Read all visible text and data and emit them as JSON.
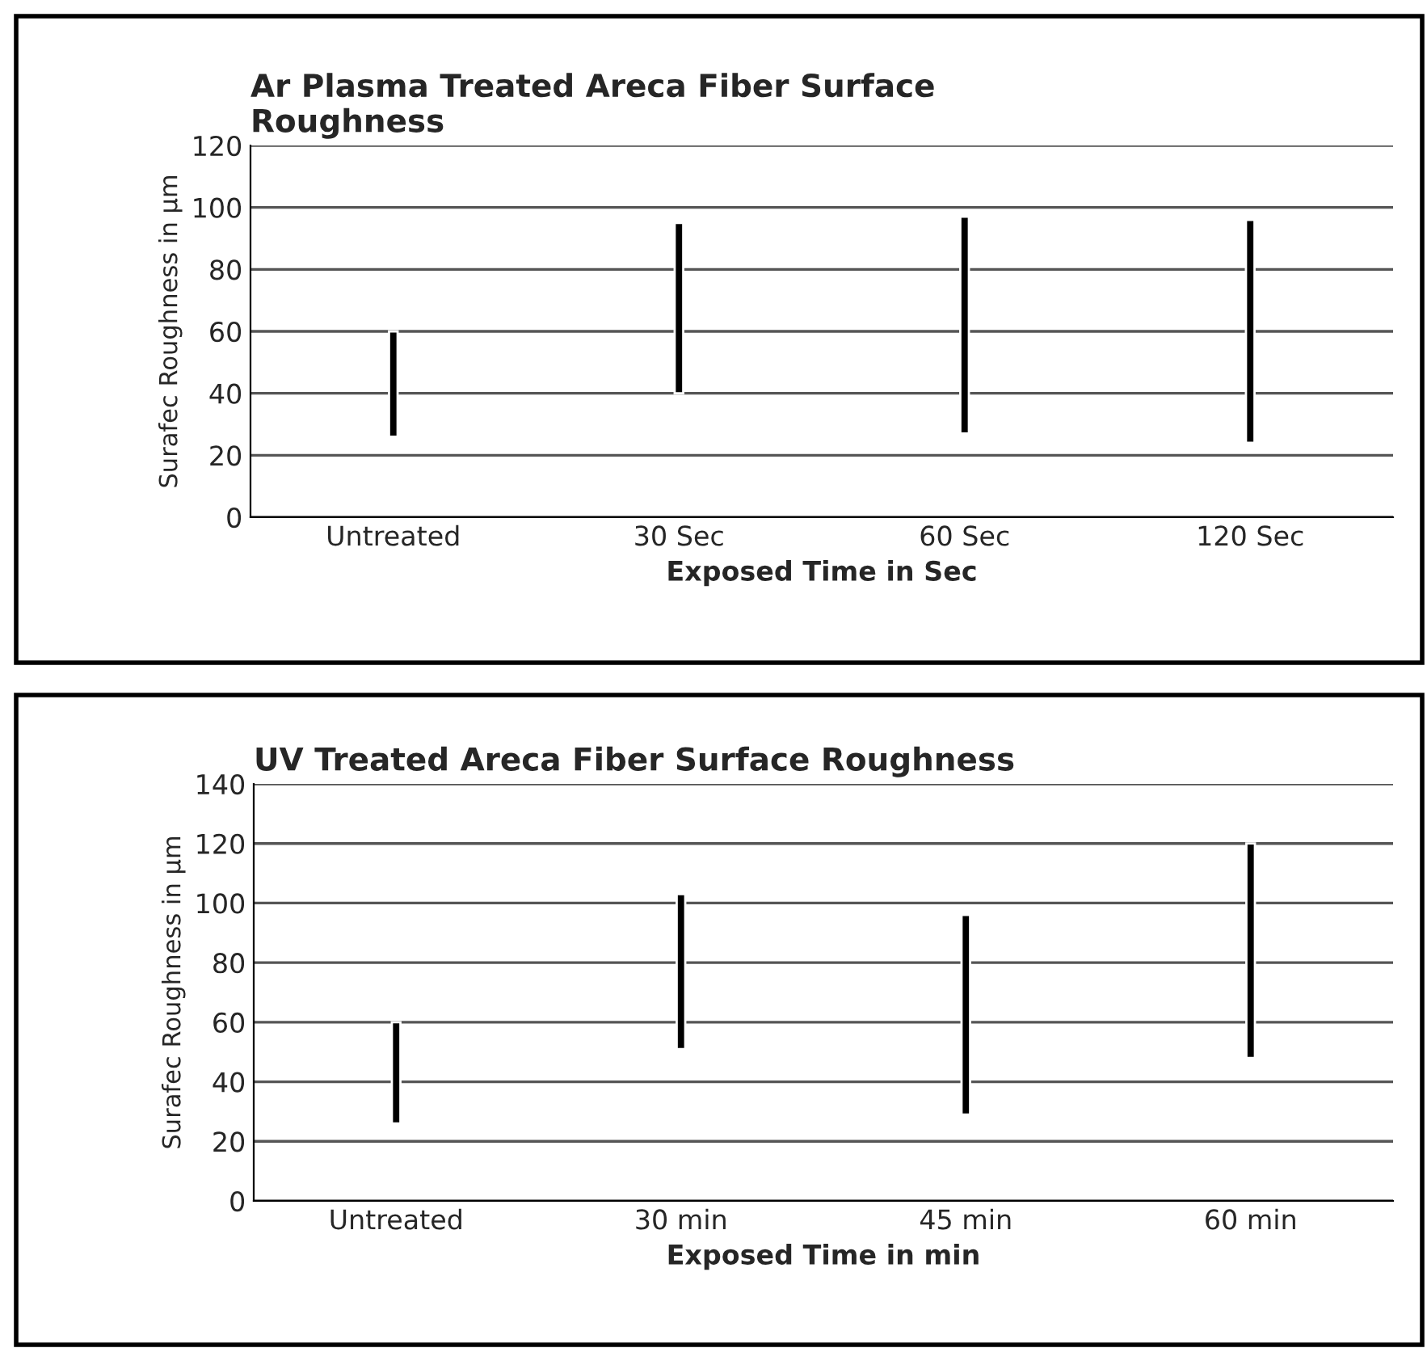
{
  "chart_data": [
    {
      "type": "bar",
      "title": "Ar Plasma Treated Areca Fiber Surface\nRoughness",
      "xlabel": "Exposed Time in Sec",
      "ylabel": "Surafec Roughness in µm",
      "categories": [
        "Untreated",
        "30 Sec",
        "60 Sec",
        "120 Sec"
      ],
      "series": [
        {
          "color": "#000000",
          "base": [
            26,
            40,
            27,
            24
          ],
          "values": [
            34,
            55,
            70,
            72
          ]
        }
      ],
      "ylim": [
        0,
        120
      ],
      "yticks": [
        0,
        20,
        40,
        60,
        80,
        100,
        120
      ],
      "grid": "y",
      "legend": false
    },
    {
      "type": "bar",
      "title": "UV Treated Areca Fiber Surface Roughness",
      "xlabel": "Exposed Time in min",
      "ylabel": "Surafec Roughness in µm",
      "categories": [
        "Untreated",
        "30 min",
        "45 min",
        "60 min"
      ],
      "series": [
        {
          "color": "#000000",
          "base": [
            26,
            51,
            29,
            48
          ],
          "values": [
            34,
            52,
            67,
            72
          ]
        }
      ],
      "ylim": [
        0,
        140
      ],
      "yticks": [
        0,
        20,
        40,
        60,
        80,
        100,
        120,
        140
      ],
      "grid": "y",
      "legend": false
    }
  ]
}
